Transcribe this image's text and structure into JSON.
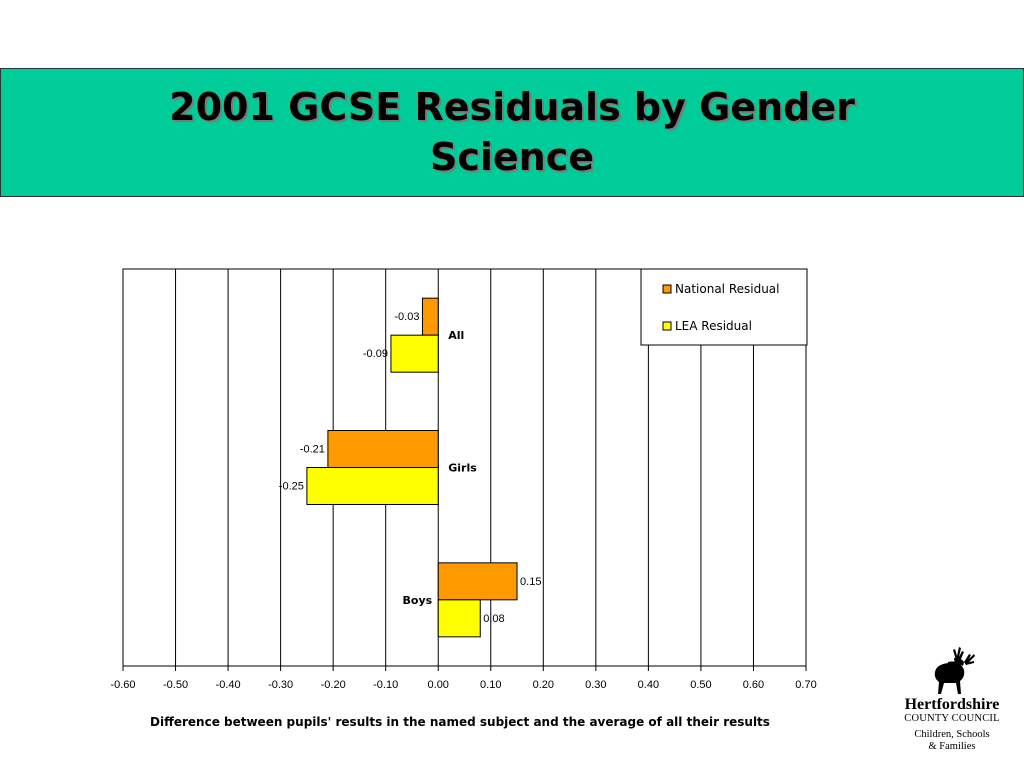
{
  "title": {
    "line1": "2001 GCSE Residuals by Gender",
    "line2": "Science"
  },
  "colors": {
    "title_band": "#00cc99",
    "national": "#ff9900",
    "lea": "#ffff00"
  },
  "chart_data": {
    "type": "bar",
    "orientation": "horizontal",
    "categories": [
      "All",
      "Girls",
      "Boys"
    ],
    "series": [
      {
        "name": "National Residual",
        "values": [
          -0.03,
          -0.21,
          0.15
        ],
        "color": "#ff9900"
      },
      {
        "name": "LEA Residual",
        "values": [
          -0.09,
          -0.25,
          0.08
        ],
        "color": "#ffff00"
      }
    ],
    "value_labels": [
      [
        "-0.03",
        "-0.21",
        "0.15"
      ],
      [
        "-0.09",
        "-0.25",
        "0.08"
      ]
    ],
    "xlim": [
      -0.6,
      0.7
    ],
    "xticks": [
      "-0.60",
      "-0.50",
      "-0.40",
      "-0.30",
      "-0.20",
      "-0.10",
      "0.00",
      "0.10",
      "0.20",
      "0.30",
      "0.40",
      "0.50",
      "0.60",
      "0.70"
    ],
    "xlabel": "Difference between pupils' results in the named subject and the average of all their results",
    "grid": true,
    "legend": "top-right"
  },
  "logo": {
    "name": "Hertfordshire",
    "council": "COUNTY COUNCIL",
    "dept_line1": "Children, Schools",
    "dept_line2": "& Families",
    "icon": "stag-icon"
  }
}
